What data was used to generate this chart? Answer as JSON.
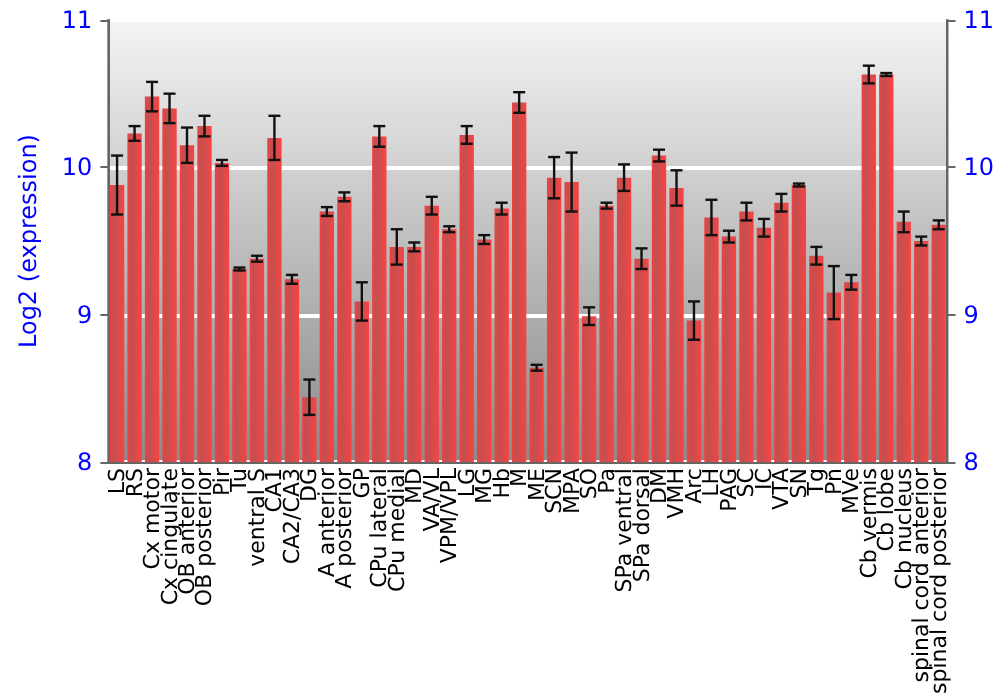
{
  "chart_data": {
    "type": "bar",
    "ylabel": "Log2 (expression)",
    "categories": [
      "LS",
      "RS",
      "Cx motor",
      "Cx cingulate",
      "OB anterior",
      "OB posterior",
      "Pir",
      "Tu",
      "ventral S",
      "CA1",
      "CA2/CA3",
      "DG",
      "A anterior",
      "A posterior",
      "GP",
      "CPu lateral",
      "CPu medial",
      "MD",
      "VA/VL",
      "VPM/VPL",
      "LG",
      "MG",
      "Hb",
      "M",
      "ME",
      "SCN",
      "MPA",
      "SO",
      "Pa",
      "SPa ventral",
      "SPa dorsal",
      "DM",
      "VMH",
      "Arc",
      "LH",
      "PAG",
      "SC",
      "IC",
      "VTA",
      "SN",
      "Tg",
      "Pn",
      "MVe",
      "Cb vermis",
      "Cb lobe",
      "Cb nucleus",
      "spinal cord anterior",
      "spinal cord posterior"
    ],
    "values": [
      9.88,
      10.23,
      10.48,
      10.4,
      10.15,
      10.28,
      10.03,
      9.31,
      9.38,
      10.2,
      9.24,
      8.44,
      9.7,
      9.8,
      9.09,
      10.21,
      9.46,
      9.46,
      9.74,
      9.58,
      10.22,
      9.51,
      9.72,
      10.44,
      8.64,
      9.93,
      9.9,
      8.99,
      9.74,
      9.93,
      9.38,
      10.08,
      9.86,
      8.96,
      9.66,
      9.53,
      9.7,
      9.59,
      9.76,
      9.88,
      9.4,
      9.15,
      9.22,
      10.63,
      10.63,
      9.63,
      9.5,
      9.61
    ],
    "errors": [
      0.2,
      0.05,
      0.1,
      0.1,
      0.12,
      0.07,
      0.02,
      0.01,
      0.02,
      0.15,
      0.03,
      0.12,
      0.03,
      0.03,
      0.13,
      0.07,
      0.12,
      0.03,
      0.06,
      0.02,
      0.06,
      0.03,
      0.04,
      0.07,
      0.02,
      0.14,
      0.2,
      0.06,
      0.02,
      0.09,
      0.07,
      0.04,
      0.12,
      0.13,
      0.12,
      0.04,
      0.06,
      0.06,
      0.06,
      0.01,
      0.06,
      0.18,
      0.05,
      0.06,
      0.01,
      0.07,
      0.03,
      0.03
    ],
    "color": "#b83232",
    "ylim": [
      8,
      11
    ],
    "yticks": [
      8,
      9,
      10,
      11
    ],
    "y2lim": [
      8,
      11
    ],
    "y2ticks": [
      8,
      9,
      10,
      11
    ],
    "grid": "y"
  }
}
